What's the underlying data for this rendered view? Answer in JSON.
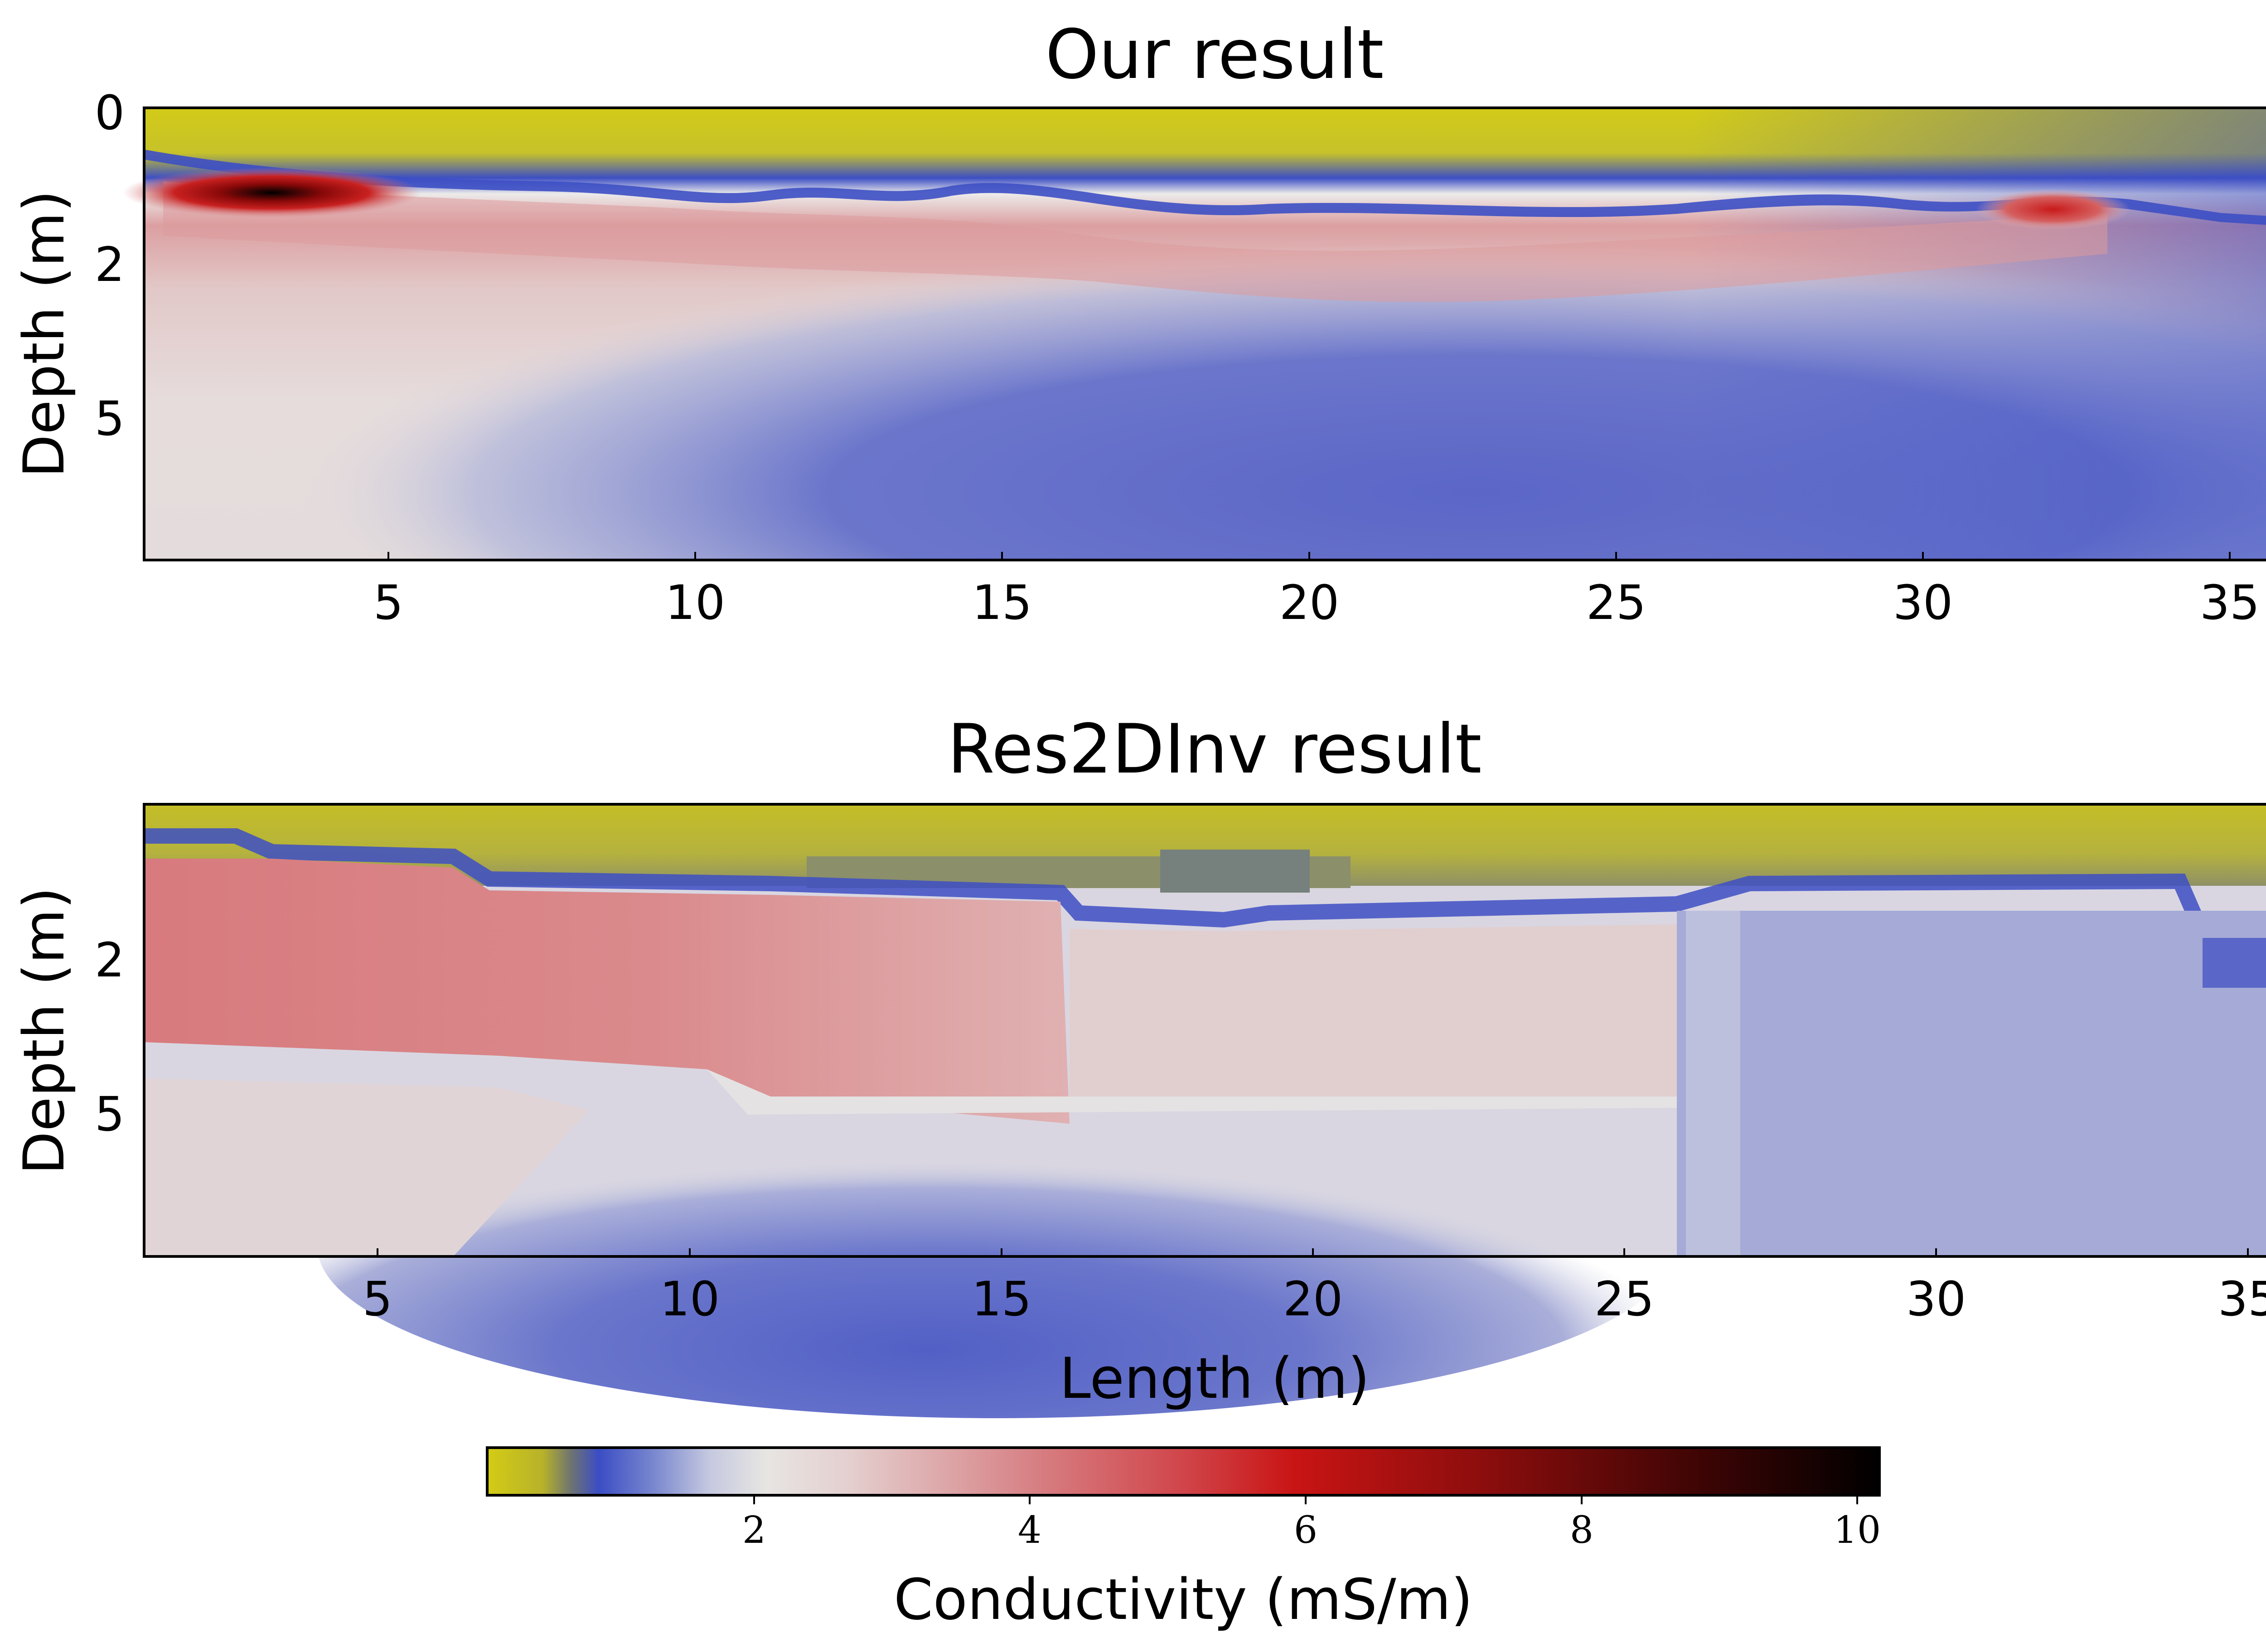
{
  "colors": {
    "scale": [
      "#d4cc14",
      "#8a8f5e",
      "#3b4dc4",
      "#e8e6e2",
      "#d37a7c",
      "#c91414",
      "#000000"
    ],
    "background": "#ffffff"
  },
  "chart_data": [
    {
      "type": "heatmap",
      "title": "Our result",
      "xlabel": "",
      "ylabel": "Depth (m)",
      "xlim": [
        1,
        36
      ],
      "xticks": [
        "5",
        "10",
        "15",
        "20",
        "25",
        "30",
        "35"
      ],
      "yticks": [
        "0",
        "2",
        "5"
      ],
      "smooth": true,
      "features": [
        {
          "kind": "near-surface conductivity",
          "approx_mS_per_m": 0.1,
          "depth_range_m": [
            0,
            1.1
          ]
        },
        {
          "kind": "thin resistive band",
          "approx_mS_per_m": 0.8,
          "depth_m": 1.2
        },
        {
          "kind": "conductive layer",
          "approx_mS_per_m": 3.5,
          "depth_range_m": [
            1.2,
            2.5
          ],
          "x_range_m": [
            1,
            34
          ]
        },
        {
          "kind": "conductive peak",
          "approx_mS_per_m": 10,
          "x_range_m": [
            2,
            6
          ],
          "depth_m": 1.3
        },
        {
          "kind": "conductive peak",
          "approx_mS_per_m": 6,
          "x_range_m": [
            31.5,
            33
          ],
          "depth_m": 1.5
        },
        {
          "kind": "deep resistive body",
          "approx_mS_per_m": 0.9,
          "x_range_m": [
            10,
            36
          ],
          "depth_range_m": [
            3,
            8
          ]
        }
      ]
    },
    {
      "type": "heatmap",
      "title": "Res2DInv result",
      "xlabel": "Length (m)",
      "ylabel": "Depth (m)",
      "xlim": [
        1,
        36
      ],
      "xticks": [
        "5",
        "10",
        "15",
        "20",
        "25",
        "30",
        "35"
      ],
      "yticks": [
        "2",
        "5"
      ],
      "smooth": false,
      "features": [
        {
          "kind": "near-surface conductivity",
          "approx_mS_per_m": 0.1,
          "depth_range_m": [
            0,
            1.2
          ]
        },
        {
          "kind": "thin resistive band",
          "approx_mS_per_m": 0.8,
          "depth_m": 1.4
        },
        {
          "kind": "conductive block",
          "approx_mS_per_m": 4,
          "x_range_m": [
            1,
            16
          ],
          "depth_range_m": [
            1.5,
            4
          ]
        },
        {
          "kind": "moderate block",
          "approx_mS_per_m": 2.3,
          "x_range_m": [
            16,
            26
          ],
          "depth_range_m": [
            1.7,
            4.2
          ]
        },
        {
          "kind": "resistive body",
          "approx_mS_per_m": 0.9,
          "x_range_m": [
            8,
            27
          ],
          "depth_range_m": [
            4.5,
            8
          ]
        },
        {
          "kind": "resistive body",
          "approx_mS_per_m": 1.4,
          "x_range_m": [
            26,
            36
          ],
          "depth_range_m": [
            1.7,
            8
          ]
        }
      ]
    }
  ],
  "colorbar": {
    "label": "Conductivity (mS/m)",
    "range": [
      0,
      10.2
    ],
    "ticks": [
      "2",
      "4",
      "6",
      "8",
      "10"
    ]
  }
}
